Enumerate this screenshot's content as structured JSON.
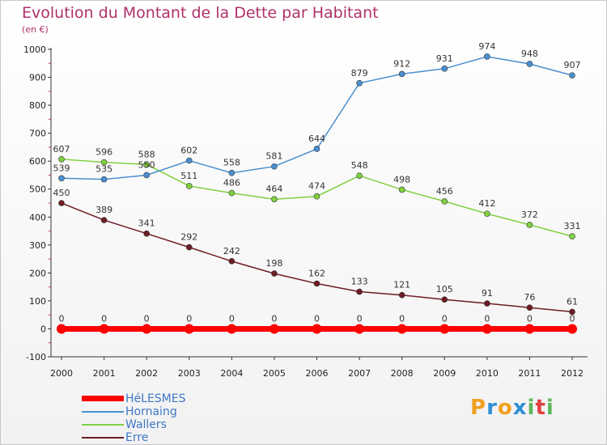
{
  "header": {
    "title": "Evolution du Montant de la Dette par Habitant",
    "subtitle": "(en €)"
  },
  "logo": {
    "letters": [
      "P",
      "r",
      "o",
      "x",
      "i",
      "t",
      "i"
    ],
    "colors": [
      "#f0a020",
      "#2f8fd6",
      "#f0a020",
      "#2f8fd6",
      "#5cb85c",
      "#e04040",
      "#5cb85c"
    ]
  },
  "chart_data": {
    "type": "line",
    "title": "Evolution du Montant de la Dette par Habitant",
    "subtitle": "(en €)",
    "x": [
      "2000",
      "2001",
      "2002",
      "2003",
      "2004",
      "2005",
      "2006",
      "2007",
      "2008",
      "2009",
      "2010",
      "2011",
      "2012"
    ],
    "ylim": [
      -100,
      1000
    ],
    "yticks": [
      -100,
      0,
      100,
      200,
      300,
      400,
      500,
      600,
      700,
      800,
      900,
      1000
    ],
    "grid": false,
    "legend_position": "bottom-left",
    "series": [
      {
        "name": "HéLESMES",
        "color": "#ff0000",
        "values": [
          0,
          0,
          0,
          0,
          0,
          0,
          0,
          0,
          0,
          0,
          0,
          0,
          0
        ]
      },
      {
        "name": "Hornaing",
        "color": "#4a8fd0",
        "values": [
          539,
          535,
          550,
          602,
          558,
          581,
          644,
          879,
          912,
          931,
          974,
          948,
          907
        ]
      },
      {
        "name": "Wallers",
        "color": "#80d040",
        "values": [
          607,
          596,
          588,
          511,
          486,
          464,
          474,
          548,
          498,
          456,
          412,
          372,
          331
        ]
      },
      {
        "name": "Erre",
        "color": "#6e1c24",
        "values": [
          450,
          389,
          341,
          292,
          242,
          198,
          162,
          133,
          121,
          105,
          91,
          76,
          61
        ]
      }
    ]
  }
}
